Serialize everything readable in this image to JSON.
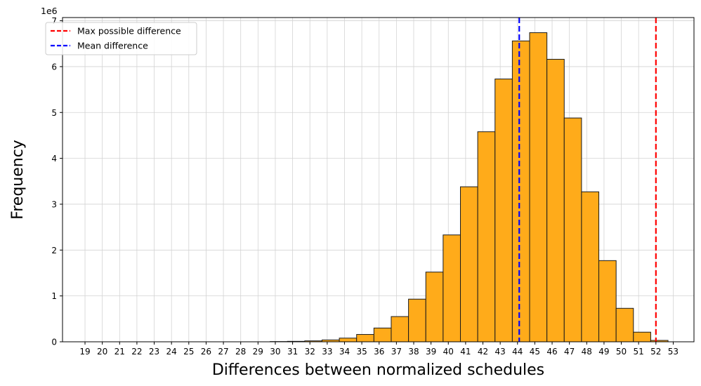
{
  "chart_data": {
    "type": "bar",
    "xlabel": "Differences between normalized schedules",
    "ylabel": "Frequency",
    "y_scale_label": "1e6",
    "y_multiplier": 1000000,
    "ylim": [
      0,
      7.07
    ],
    "xlim": [
      17.7,
      54.2
    ],
    "ytick_labels": [
      "0",
      "1",
      "2",
      "3",
      "4",
      "5",
      "6",
      "7"
    ],
    "ytick_values": [
      0,
      1,
      2,
      3,
      4,
      5,
      6,
      7
    ],
    "xtick_values": [
      19,
      20,
      21,
      22,
      23,
      24,
      25,
      26,
      27,
      28,
      29,
      30,
      31,
      32,
      33,
      34,
      35,
      36,
      37,
      38,
      39,
      40,
      41,
      42,
      43,
      44,
      45,
      46,
      47,
      48,
      49,
      50,
      51,
      52,
      53
    ],
    "xtick_labels": [
      "19",
      "20",
      "21",
      "22",
      "23",
      "24",
      "25",
      "26",
      "27",
      "28",
      "29",
      "30",
      "31",
      "32",
      "33",
      "34",
      "35",
      "36",
      "37",
      "38",
      "39",
      "40",
      "41",
      "42",
      "43",
      "44",
      "45",
      "46",
      "47",
      "48",
      "49",
      "50",
      "51",
      "52",
      "53"
    ],
    "bin_edges": [
      29.7,
      30.7,
      31.7,
      32.7,
      33.7,
      34.7,
      35.7,
      36.7,
      37.7,
      38.7,
      39.7,
      40.7,
      41.7,
      42.7,
      43.7,
      44.7,
      45.7,
      46.7,
      47.7,
      48.7,
      49.7,
      50.7,
      51.7,
      52.7
    ],
    "values": [
      0.005,
      0.01,
      0.02,
      0.04,
      0.08,
      0.16,
      0.3,
      0.55,
      0.93,
      1.52,
      2.33,
      3.38,
      4.58,
      5.73,
      6.56,
      6.74,
      6.16,
      4.88,
      3.27,
      1.77,
      0.73,
      0.21,
      0.03
    ],
    "vertical_lines": [
      {
        "name": "Max possible difference",
        "x": 52,
        "color": "#ff0000"
      },
      {
        "name": "Mean difference",
        "x": 44.1,
        "color": "#0000ff"
      }
    ],
    "bar_color": "#ffab1a",
    "bar_edge_color": "#1a1a1a",
    "grid": true,
    "legend_position": "top-left"
  }
}
